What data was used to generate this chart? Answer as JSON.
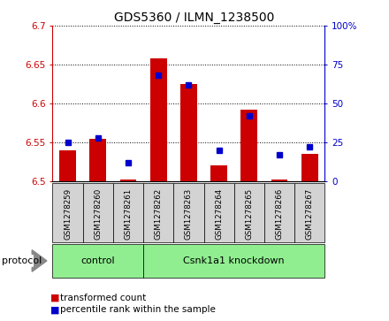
{
  "title": "GDS5360 / ILMN_1238500",
  "samples": [
    "GSM1278259",
    "GSM1278260",
    "GSM1278261",
    "GSM1278262",
    "GSM1278263",
    "GSM1278264",
    "GSM1278265",
    "GSM1278266",
    "GSM1278267"
  ],
  "red_values": [
    6.54,
    6.555,
    6.502,
    6.658,
    6.625,
    6.52,
    6.592,
    6.502,
    6.535
  ],
  "blue_percentiles": [
    25,
    28,
    12,
    68,
    62,
    20,
    42,
    17,
    22
  ],
  "ylim_left": [
    6.5,
    6.7
  ],
  "ylim_right": [
    0,
    100
  ],
  "yticks_left": [
    6.5,
    6.55,
    6.6,
    6.65,
    6.7
  ],
  "yticks_right": [
    0,
    25,
    50,
    75,
    100
  ],
  "ytick_labels_left": [
    "6.5",
    "6.55",
    "6.6",
    "6.65",
    "6.7"
  ],
  "ytick_labels_right": [
    "0",
    "25",
    "50",
    "75",
    "100%"
  ],
  "red_color": "#CC0000",
  "blue_color": "#0000CC",
  "bg_plot": "#ffffff",
  "bg_sample_box": "#d3d3d3",
  "bg_group_box": "#90EE90",
  "legend_red": "transformed count",
  "legend_blue": "percentile rank within the sample",
  "base_value": 6.5,
  "bar_width": 0.55,
  "n_control": 3,
  "n_knockdown": 6,
  "control_label": "control",
  "knockdown_label": "Csnk1a1 knockdown",
  "protocol_label": "protocol"
}
